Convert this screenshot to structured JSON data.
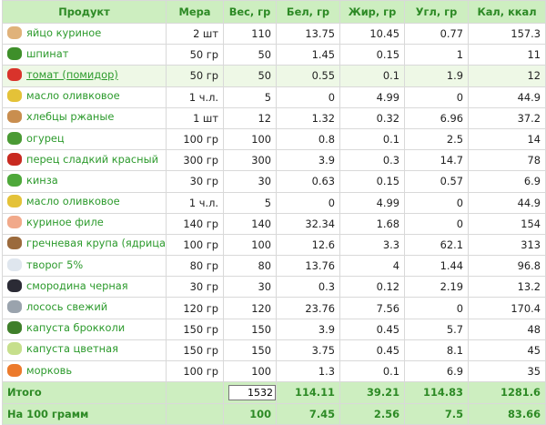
{
  "headers": {
    "product": "Продукт",
    "measure": "Мера",
    "weight": "Вес, гр",
    "protein": "Бел, гр",
    "fat": "Жир, гр",
    "carbs": "Угл, гр",
    "kcal": "Кал, ккал"
  },
  "rows": [
    {
      "name": "яйцо куриное",
      "measure": "2 шт",
      "weight": "110",
      "protein": "13.75",
      "fat": "10.45",
      "carbs": "0.77",
      "kcal": "157.3",
      "icon": "egg-icon",
      "color": "#e0b27a"
    },
    {
      "name": "шпинат",
      "measure": "50 гр",
      "weight": "50",
      "protein": "1.45",
      "fat": "0.15",
      "carbs": "1",
      "kcal": "11",
      "icon": "spinach-icon",
      "color": "#3e8f2a"
    },
    {
      "name": "томат (помидор)",
      "measure": "50 гр",
      "weight": "50",
      "protein": "0.55",
      "fat": "0.1",
      "carbs": "1.9",
      "kcal": "12",
      "icon": "tomato-icon",
      "color": "#d9332b"
    },
    {
      "name": "масло оливковое",
      "measure": "1 ч.л.",
      "weight": "5",
      "protein": "0",
      "fat": "4.99",
      "carbs": "0",
      "kcal": "44.9",
      "icon": "olive-oil-icon",
      "color": "#e4c238"
    },
    {
      "name": "хлебцы ржаные",
      "measure": "1 шт",
      "weight": "12",
      "protein": "1.32",
      "fat": "0.32",
      "carbs": "6.96",
      "kcal": "37.2",
      "icon": "crispbread-icon",
      "color": "#c98e4f"
    },
    {
      "name": "огурец",
      "measure": "100 гр",
      "weight": "100",
      "protein": "0.8",
      "fat": "0.1",
      "carbs": "2.5",
      "kcal": "14",
      "icon": "cucumber-icon",
      "color": "#4a9a34"
    },
    {
      "name": "перец сладкий красный",
      "measure": "300 гр",
      "weight": "300",
      "protein": "3.9",
      "fat": "0.3",
      "carbs": "14.7",
      "kcal": "78",
      "icon": "red-pepper-icon",
      "color": "#c82a20"
    },
    {
      "name": "кинза",
      "measure": "30 гр",
      "weight": "30",
      "protein": "0.63",
      "fat": "0.15",
      "carbs": "0.57",
      "kcal": "6.9",
      "icon": "cilantro-icon",
      "color": "#4ea83a"
    },
    {
      "name": "масло оливковое",
      "measure": "1 ч.л.",
      "weight": "5",
      "protein": "0",
      "fat": "4.99",
      "carbs": "0",
      "kcal": "44.9",
      "icon": "olive-oil-icon",
      "color": "#e4c238"
    },
    {
      "name": "куриное филе",
      "measure": "140 гр",
      "weight": "140",
      "protein": "32.34",
      "fat": "1.68",
      "carbs": "0",
      "kcal": "154",
      "icon": "chicken-fillet-icon",
      "color": "#f1a98a"
    },
    {
      "name": "гречневая крупа (ядрица)",
      "measure": "100 гр",
      "weight": "100",
      "protein": "12.6",
      "fat": "3.3",
      "carbs": "62.1",
      "kcal": "313",
      "icon": "buckwheat-icon",
      "color": "#9b6a3c"
    },
    {
      "name": "творог 5%",
      "measure": "80 гр",
      "weight": "80",
      "protein": "13.76",
      "fat": "4",
      "carbs": "1.44",
      "kcal": "96.8",
      "icon": "cottage-cheese-icon",
      "color": "#dfe6ee"
    },
    {
      "name": "смородина черная",
      "measure": "30 гр",
      "weight": "30",
      "protein": "0.3",
      "fat": "0.12",
      "carbs": "2.19",
      "kcal": "13.2",
      "icon": "blackcurrant-icon",
      "color": "#2b2b35"
    },
    {
      "name": "лосось свежий",
      "measure": "120 гр",
      "weight": "120",
      "protein": "23.76",
      "fat": "7.56",
      "carbs": "0",
      "kcal": "170.4",
      "icon": "salmon-icon",
      "color": "#9aa3ad"
    },
    {
      "name": "капуста брокколи",
      "measure": "150 гр",
      "weight": "150",
      "protein": "3.9",
      "fat": "0.45",
      "carbs": "5.7",
      "kcal": "48",
      "icon": "broccoli-icon",
      "color": "#3f7f2a"
    },
    {
      "name": "капуста цветная",
      "measure": "150 гр",
      "weight": "150",
      "protein": "3.75",
      "fat": "0.45",
      "carbs": "8.1",
      "kcal": "45",
      "icon": "cauliflower-icon",
      "color": "#c6df8c"
    },
    {
      "name": "морковь",
      "measure": "100 гр",
      "weight": "100",
      "protein": "1.3",
      "fat": "0.1",
      "carbs": "6.9",
      "kcal": "35",
      "icon": "carrot-icon",
      "color": "#ec7a2c"
    }
  ],
  "highlighted_row": 2,
  "total": {
    "label": "Итого",
    "weight_input": "1532",
    "protein": "114.11",
    "fat": "39.21",
    "carbs": "114.83",
    "kcal": "1281.6"
  },
  "per100": {
    "label": "На 100 грамм",
    "weight": "100",
    "protein": "7.45",
    "fat": "2.56",
    "carbs": "7.5",
    "kcal": "83.66"
  },
  "colors": {
    "header_bg": "#cdeec0",
    "header_text": "#2d8a25",
    "link": "#2c9a2c",
    "highlight_row": "#eef8e6",
    "border": "#d9d9d9"
  }
}
